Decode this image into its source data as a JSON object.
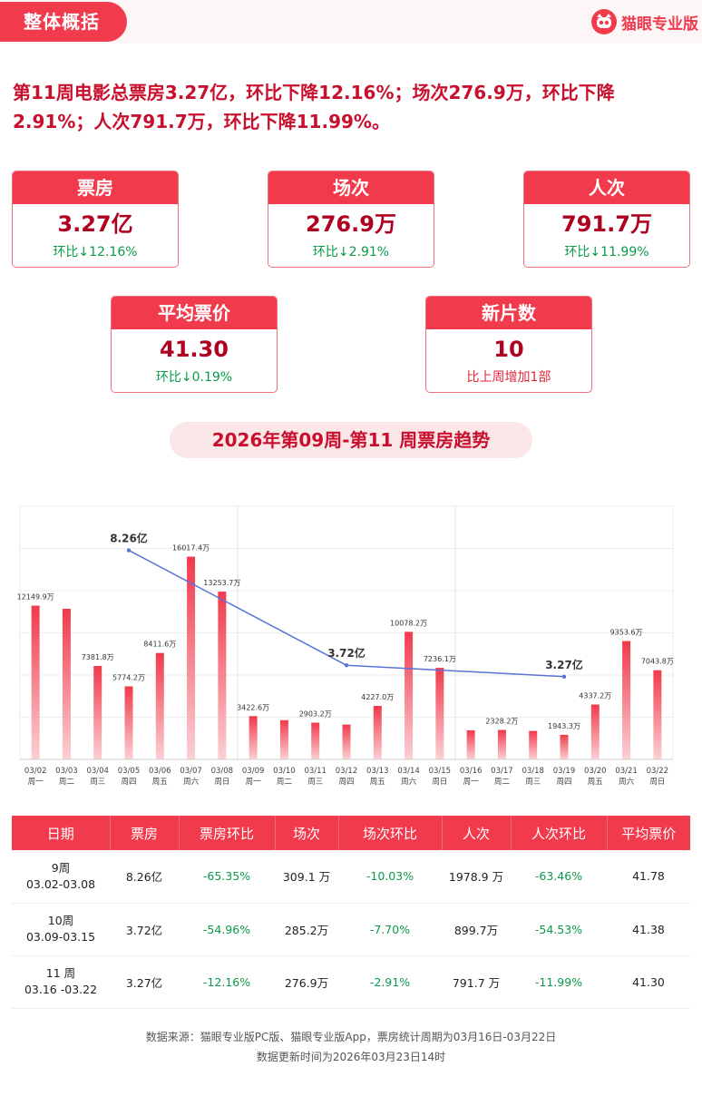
{
  "header": {
    "tag": "整体概括",
    "brand": "猫眼专业版",
    "brand_icon": "cat-eye-logo-icon"
  },
  "summary": "第11周电影总票房3.27亿，环比下降12.16%；场次276.9万，环比下降2.91%；人次791.7万，环比下降11.99%。",
  "cards": [
    {
      "title": "票房",
      "value": "3.27亿",
      "sub": "环比↓12.16%"
    },
    {
      "title": "场次",
      "value": "276.9万",
      "sub": "环比↓2.91%"
    },
    {
      "title": "人次",
      "value": "791.7万",
      "sub": "环比↓11.99%"
    },
    {
      "title": "平均票价",
      "value": "41.30",
      "sub": "环比↓0.19%"
    },
    {
      "title": "新片数",
      "value": "10",
      "sub": "比上周增加1部"
    }
  ],
  "colors": {
    "accent": "#f13a4b",
    "value_red": "#b00020",
    "down_green": "#0a9a4a",
    "line_blue": "#5b74d6",
    "bar_top": "#f13a4b",
    "bar_bottom": "#fbd0d4"
  },
  "chart_data": {
    "type": "bar",
    "title": "2026年第09周-第11 周票房趋势",
    "categories": [
      "03/02",
      "03/03",
      "03/04",
      "03/05",
      "03/06",
      "03/07",
      "03/08",
      "03/09",
      "03/10",
      "03/11",
      "03/12",
      "03/13",
      "03/14",
      "03/15",
      "03/16",
      "03/17",
      "03/18",
      "03/19",
      "03/20",
      "03/21",
      "03/22"
    ],
    "weekdays": [
      "周一",
      "周二",
      "周三",
      "周四",
      "周五",
      "周六",
      "周日",
      "周一",
      "周二",
      "周三",
      "周四",
      "周五",
      "周六",
      "周日",
      "周一",
      "周二",
      "周三",
      "周四",
      "周五",
      "周六",
      "周日"
    ],
    "series": [
      {
        "values": [
          12149.9,
          11900,
          7381.8,
          5774.2,
          8411.6,
          16017.4,
          13253.7,
          3422.6,
          3100,
          2903.2,
          2750,
          4227.0,
          10078.2,
          7236.1,
          2300,
          2328.2,
          2250,
          1943.3,
          4337.2,
          9353.6,
          7043.8
        ]
      },
      {
        "type": "line",
        "x": [
          "03/05",
          "03/12",
          "03/19"
        ],
        "values": [
          8.26,
          3.72,
          3.27
        ],
        "unit": "亿"
      }
    ],
    "bar_labels": [
      "12149.9万",
      "",
      "7381.8万",
      "5774.2万",
      "8411.6万",
      "16017.4万",
      "13253.7万",
      "3422.6万",
      "",
      "2903.2万",
      "",
      "4227.0万",
      "10078.2万",
      "7236.1万",
      "",
      "2328.2万",
      "",
      "1943.3万",
      "4337.2万",
      "9353.6万",
      "7043.8万"
    ],
    "line_labels": [
      "8.26亿",
      "3.72亿",
      "3.27亿"
    ],
    "week_separators_after": [
      "03/08",
      "03/15"
    ],
    "grid": true,
    "ylim": [
      0,
      20000
    ],
    "line_ylim": [
      0,
      10
    ]
  },
  "table": {
    "headers": [
      "日期",
      "票房",
      "票房环比",
      "场次",
      "场次环比",
      "人次",
      "人次环比",
      "平均票价"
    ],
    "rows": [
      {
        "week": "9周",
        "range": "03.02-03.08",
        "box": "8.26亿",
        "box_chg": "-65.35%",
        "shows": "309.1 万",
        "shows_chg": "-10.03%",
        "admissions": "1978.9 万",
        "adm_chg": "-63.46%",
        "price": "41.78"
      },
      {
        "week": "10周",
        "range": "03.09-03.15",
        "box": "3.72亿",
        "box_chg": "-54.96%",
        "shows": "285.2万",
        "shows_chg": "-7.70%",
        "admissions": "899.7万",
        "adm_chg": "-54.53%",
        "price": "41.38"
      },
      {
        "week": "11 周",
        "range": "03.16 -03.22",
        "box": "3.27亿",
        "box_chg": "-12.16%",
        "shows": "276.9万",
        "shows_chg": "-2.91%",
        "admissions": "791.7 万",
        "adm_chg": "-11.99%",
        "price": "41.30"
      }
    ]
  },
  "footer": {
    "line1": "数据来源：猫眼专业版PC版、猫眼专业版App，票房统计周期为03月16日-03月22日",
    "line2": "数据更新时间为2026年03月23日14时"
  }
}
